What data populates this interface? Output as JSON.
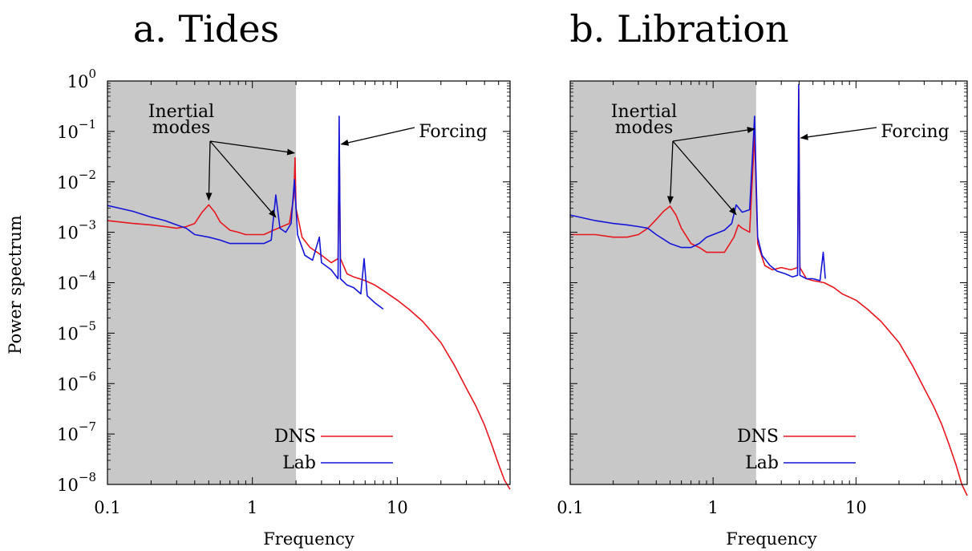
{
  "chart_data": [
    {
      "type": "line",
      "title": "a. Tides",
      "xlabel": "Frequency",
      "ylabel": "Power spectrum",
      "xscale": "log",
      "yscale": "log",
      "xlim": [
        0.1,
        60
      ],
      "ylim": [
        1e-08,
        1
      ],
      "x_ticks": [
        "0.1",
        "1",
        "10"
      ],
      "y_ticks": [
        {
          "base": "10",
          "exp": "0"
        },
        {
          "base": "10",
          "exp": "−1"
        },
        {
          "base": "10",
          "exp": "−2"
        },
        {
          "base": "10",
          "exp": "−3"
        },
        {
          "base": "10",
          "exp": "−4"
        },
        {
          "base": "10",
          "exp": "−5"
        },
        {
          "base": "10",
          "exp": "−6"
        },
        {
          "base": "10",
          "exp": "−7"
        },
        {
          "base": "10",
          "exp": "−8"
        }
      ],
      "shaded_region": {
        "x_from": 0.1,
        "x_to": 2.0,
        "color": "#c8c8c8"
      },
      "legend_position": "bottom-right",
      "annotations": {
        "inertial_label": [
          "Inertial",
          "modes"
        ],
        "inertial_targets": [
          [
            0.5,
            0.0035
          ],
          [
            1.45,
            0.0016
          ],
          [
            1.95,
            0.03
          ]
        ],
        "forcing_label": "Forcing",
        "forcing_target": [
          4.0,
          0.06
        ]
      },
      "series": [
        {
          "name": "DNS",
          "color": "#e8161e",
          "points": [
            [
              0.1,
              0.0017
            ],
            [
              0.15,
              0.0015
            ],
            [
              0.2,
              0.0014
            ],
            [
              0.25,
              0.0013
            ],
            [
              0.3,
              0.0012
            ],
            [
              0.35,
              0.0013
            ],
            [
              0.4,
              0.0015
            ],
            [
              0.45,
              0.0025
            ],
            [
              0.5,
              0.0035
            ],
            [
              0.55,
              0.0025
            ],
            [
              0.6,
              0.0016
            ],
            [
              0.7,
              0.0011
            ],
            [
              0.8,
              0.001
            ],
            [
              0.9,
              0.0009
            ],
            [
              1.0,
              0.0009
            ],
            [
              1.2,
              0.0009
            ],
            [
              1.4,
              0.0011
            ],
            [
              1.6,
              0.0013
            ],
            [
              1.8,
              0.0015
            ],
            [
              1.93,
              0.005
            ],
            [
              1.97,
              0.03
            ],
            [
              2.0,
              0.003
            ],
            [
              2.2,
              0.0008
            ],
            [
              2.5,
              0.0005
            ],
            [
              3.0,
              0.00035
            ],
            [
              3.5,
              0.00025
            ],
            [
              3.9,
              0.0003
            ],
            [
              3.97,
              0.06
            ],
            [
              4.05,
              0.0003
            ],
            [
              4.5,
              0.00015
            ],
            [
              5.0,
              0.00013
            ],
            [
              6.0,
              0.00011
            ],
            [
              7.0,
              9e-05
            ],
            [
              8.0,
              7e-05
            ],
            [
              10.0,
              4.5e-05
            ],
            [
              12.0,
              3e-05
            ],
            [
              15.0,
              1.7e-05
            ],
            [
              20.0,
              6.5e-06
            ],
            [
              25.0,
              2.2e-06
            ],
            [
              30.0,
              8e-07
            ],
            [
              35.0,
              3.5e-07
            ],
            [
              40.0,
              1.5e-07
            ],
            [
              45.0,
              6e-08
            ],
            [
              50.0,
              2.5e-08
            ],
            [
              55.0,
              1.2e-08
            ],
            [
              60.0,
              8e-09
            ]
          ]
        },
        {
          "name": "Lab",
          "color": "#1515d8",
          "points": [
            [
              0.1,
              0.0034
            ],
            [
              0.15,
              0.0026
            ],
            [
              0.2,
              0.002
            ],
            [
              0.25,
              0.0017
            ],
            [
              0.3,
              0.0014
            ],
            [
              0.35,
              0.0012
            ],
            [
              0.4,
              0.0009
            ],
            [
              0.5,
              0.0008
            ],
            [
              0.6,
              0.0007
            ],
            [
              0.7,
              0.0006
            ],
            [
              0.8,
              0.0006
            ],
            [
              0.9,
              0.0006
            ],
            [
              1.0,
              0.0006
            ],
            [
              1.2,
              0.0006
            ],
            [
              1.35,
              0.0007
            ],
            [
              1.45,
              0.0055
            ],
            [
              1.55,
              0.0012
            ],
            [
              1.7,
              0.001
            ],
            [
              1.85,
              0.0015
            ],
            [
              1.95,
              0.011
            ],
            [
              2.05,
              0.0009
            ],
            [
              2.3,
              0.00035
            ],
            [
              2.6,
              0.00028
            ],
            [
              2.9,
              0.0008
            ],
            [
              3.0,
              0.00025
            ],
            [
              3.5,
              0.00018
            ],
            [
              3.9,
              0.00012
            ],
            [
              3.97,
              0.2
            ],
            [
              4.05,
              0.00012
            ],
            [
              4.5,
              9e-05
            ],
            [
              5.0,
              8e-05
            ],
            [
              5.6,
              6e-05
            ],
            [
              5.9,
              0.0003
            ],
            [
              6.2,
              5.5e-05
            ],
            [
              7.0,
              4e-05
            ],
            [
              8.0,
              3e-05
            ]
          ]
        }
      ]
    },
    {
      "type": "line",
      "title": "b. Libration",
      "xlabel": "Frequency",
      "ylabel": "",
      "xscale": "log",
      "yscale": "log",
      "xlim": [
        0.1,
        60
      ],
      "ylim": [
        1e-08,
        1
      ],
      "x_ticks": [
        "0.1",
        "1",
        "10"
      ],
      "shaded_region": {
        "x_from": 0.1,
        "x_to": 2.0,
        "color": "#c8c8c8"
      },
      "legend_position": "bottom-right",
      "annotations": {
        "inertial_label": [
          "Inertial",
          "modes"
        ],
        "inertial_targets": [
          [
            0.5,
            0.003
          ],
          [
            1.45,
            0.0018
          ],
          [
            1.95,
            0.09
          ]
        ],
        "forcing_label": "Forcing",
        "forcing_target": [
          4.0,
          0.08
        ]
      },
      "series": [
        {
          "name": "DNS",
          "color": "#e8161e",
          "points": [
            [
              0.1,
              0.0009
            ],
            [
              0.15,
              0.0009
            ],
            [
              0.2,
              0.0008
            ],
            [
              0.25,
              0.0008
            ],
            [
              0.3,
              0.0009
            ],
            [
              0.35,
              0.0012
            ],
            [
              0.4,
              0.0018
            ],
            [
              0.45,
              0.0026
            ],
            [
              0.5,
              0.0033
            ],
            [
              0.55,
              0.0022
            ],
            [
              0.6,
              0.0012
            ],
            [
              0.7,
              0.0006
            ],
            [
              0.8,
              0.0005
            ],
            [
              0.9,
              0.0004
            ],
            [
              1.0,
              0.0004
            ],
            [
              1.2,
              0.0004
            ],
            [
              1.4,
              0.0008
            ],
            [
              1.5,
              0.0014
            ],
            [
              1.6,
              0.0012
            ],
            [
              1.8,
              0.001
            ],
            [
              1.95,
              0.09
            ],
            [
              2.05,
              0.0006
            ],
            [
              2.3,
              0.00022
            ],
            [
              2.6,
              0.00018
            ],
            [
              3.0,
              0.0002
            ],
            [
              3.5,
              0.00018
            ],
            [
              3.9,
              0.0002
            ],
            [
              3.97,
              0.7
            ],
            [
              4.05,
              0.0002
            ],
            [
              4.5,
              0.00012
            ],
            [
              5.0,
              0.00011
            ],
            [
              6.0,
              0.0001
            ],
            [
              7.0,
              8e-05
            ],
            [
              8.0,
              6e-05
            ],
            [
              10.0,
              4.5e-05
            ],
            [
              12.0,
              3e-05
            ],
            [
              15.0,
              1.7e-05
            ],
            [
              20.0,
              6.5e-06
            ],
            [
              25.0,
              2.2e-06
            ],
            [
              30.0,
              8e-07
            ],
            [
              35.0,
              3.5e-07
            ],
            [
              40.0,
              1.5e-07
            ],
            [
              45.0,
              6e-08
            ],
            [
              50.0,
              2.5e-08
            ],
            [
              55.0,
              1e-08
            ],
            [
              60.0,
              6e-09
            ]
          ]
        },
        {
          "name": "Lab",
          "color": "#1515d8",
          "points": [
            [
              0.1,
              0.0022
            ],
            [
              0.15,
              0.0017
            ],
            [
              0.2,
              0.0015
            ],
            [
              0.25,
              0.0014
            ],
            [
              0.3,
              0.0013
            ],
            [
              0.35,
              0.0012
            ],
            [
              0.4,
              0.0009
            ],
            [
              0.5,
              0.0006
            ],
            [
              0.6,
              0.0005
            ],
            [
              0.7,
              0.0005
            ],
            [
              0.8,
              0.0006
            ],
            [
              0.9,
              0.0008
            ],
            [
              1.0,
              0.0009
            ],
            [
              1.2,
              0.0011
            ],
            [
              1.35,
              0.0015
            ],
            [
              1.45,
              0.0035
            ],
            [
              1.6,
              0.0025
            ],
            [
              1.8,
              0.0028
            ],
            [
              1.95,
              0.2
            ],
            [
              2.05,
              0.0008
            ],
            [
              2.2,
              0.00035
            ],
            [
              2.5,
              0.00022
            ],
            [
              2.8,
              0.00017
            ],
            [
              3.2,
              0.00015
            ],
            [
              3.6,
              0.00013
            ],
            [
              3.9,
              0.00014
            ],
            [
              3.97,
              0.85
            ],
            [
              4.05,
              0.00014
            ],
            [
              4.5,
              0.00012
            ],
            [
              5.0,
              0.00012
            ],
            [
              5.6,
              0.00011
            ],
            [
              5.9,
              0.0004
            ],
            [
              6.1,
              0.00012
            ]
          ]
        }
      ]
    }
  ]
}
